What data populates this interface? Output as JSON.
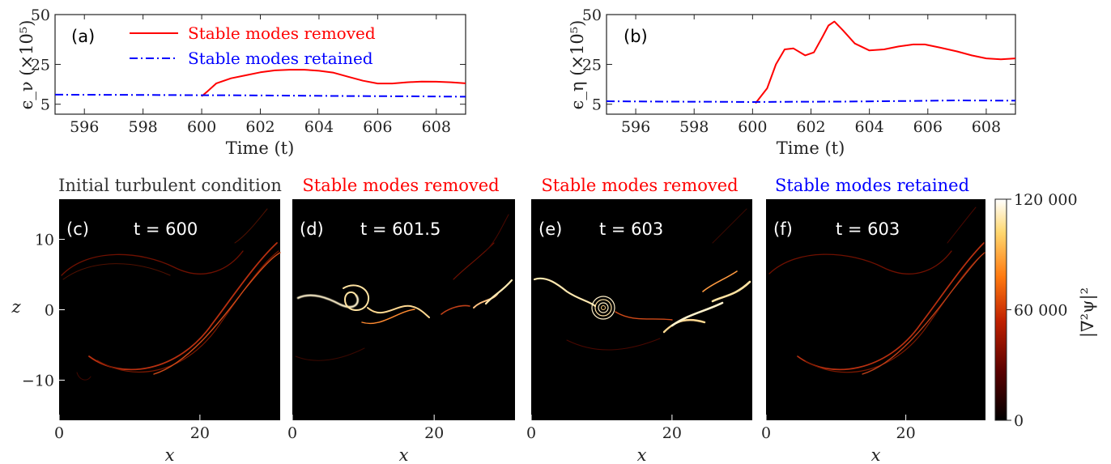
{
  "chart_data": [
    {
      "id": "a",
      "type": "line",
      "panel_label": "(a)",
      "ylabel": "ϵ_ν (×10⁵)",
      "xlabel": "Time (t)",
      "xlim": [
        595,
        609
      ],
      "ylim": [
        0,
        50
      ],
      "yticks": [
        5,
        25,
        50
      ],
      "xticks": [
        596,
        598,
        600,
        602,
        604,
        606,
        608
      ],
      "legend": "top-left",
      "series": [
        {
          "name": "Stable modes removed",
          "color": "#ff0000",
          "style": "solid",
          "x": [
            600,
            600.2,
            600.5,
            601,
            601.5,
            602,
            602.5,
            603,
            603.5,
            604,
            604.5,
            605,
            605.5,
            606,
            606.5,
            607,
            607.5,
            608,
            608.5,
            609
          ],
          "y": [
            9,
            11.5,
            15.5,
            18,
            19.5,
            21,
            22,
            22.3,
            22.3,
            21.8,
            20.8,
            18.8,
            16.8,
            15.4,
            15.4,
            16,
            16.4,
            16.3,
            16,
            15.5
          ]
        },
        {
          "name": "Stable modes retained",
          "color": "#0000ff",
          "style": "dashdot",
          "x": [
            595,
            597,
            599,
            600,
            601,
            603,
            605,
            607,
            609
          ],
          "y": [
            9.8,
            9.7,
            9.6,
            9.5,
            9.5,
            9.3,
            9.1,
            9,
            8.8
          ]
        }
      ]
    },
    {
      "id": "b",
      "type": "line",
      "panel_label": "(b)",
      "ylabel": "ϵ_η (×10⁵)",
      "xlabel": "Time (t)",
      "xlim": [
        595,
        609
      ],
      "ylim": [
        0,
        50
      ],
      "yticks": [
        5,
        25,
        50
      ],
      "xticks": [
        596,
        598,
        600,
        602,
        604,
        606,
        608
      ],
      "series": [
        {
          "name": "Stable modes removed",
          "color": "#ff0000",
          "style": "solid",
          "x": [
            600.1,
            600.5,
            600.8,
            601.1,
            601.4,
            601.8,
            602.1,
            602.4,
            602.6,
            602.8,
            603.1,
            603.5,
            604,
            604.5,
            605,
            605.5,
            605.9,
            606.4,
            607,
            607.5,
            608,
            608.5,
            609
          ],
          "y": [
            5.5,
            13,
            25,
            32.5,
            33,
            29.5,
            31,
            39,
            44.5,
            46.5,
            42,
            35.5,
            32,
            32.5,
            34,
            35,
            35,
            33.5,
            31.5,
            29.5,
            28,
            27.5,
            28
          ]
        },
        {
          "name": "Stable modes retained",
          "color": "#0000ff",
          "style": "dashdot",
          "x": [
            595,
            597,
            599,
            600,
            601,
            603,
            605,
            607,
            609
          ],
          "y": [
            6.5,
            6.3,
            6.2,
            6.1,
            6.2,
            6.3,
            6.6,
            6.9,
            6.8
          ]
        }
      ]
    },
    {
      "id": "c",
      "type": "heatmap",
      "panel_label": "(c)",
      "title": "Initial turbulent condition",
      "title_color": "#333333",
      "time_label": "t = 600",
      "xlabel": "x",
      "ylabel": "z",
      "xticks": [
        0,
        20
      ],
      "yticks": [
        10,
        0,
        -10
      ],
      "xlim": [
        0,
        31.4
      ],
      "ylim": [
        -15.7,
        15.7
      ]
    },
    {
      "id": "d",
      "type": "heatmap",
      "panel_label": "(d)",
      "title": "Stable modes removed",
      "title_color": "#ff0000",
      "time_label": "t = 601.5",
      "xlabel": "x",
      "xticks": [
        0,
        20
      ],
      "xlim": [
        0,
        31.4
      ],
      "ylim": [
        -15.7,
        15.7
      ]
    },
    {
      "id": "e",
      "type": "heatmap",
      "panel_label": "(e)",
      "title": "Stable modes removed",
      "title_color": "#ff0000",
      "time_label": "t = 603",
      "xlabel": "x",
      "xticks": [
        0,
        20
      ],
      "xlim": [
        0,
        31.4
      ],
      "ylim": [
        -15.7,
        15.7
      ]
    },
    {
      "id": "f",
      "type": "heatmap",
      "panel_label": "(f)",
      "title": "Stable modes retained",
      "title_color": "#0000ff",
      "time_label": "t = 603",
      "xlabel": "x",
      "xticks": [
        0,
        20
      ],
      "xlim": [
        0,
        31.4
      ],
      "ylim": [
        -15.7,
        15.7
      ]
    },
    {
      "id": "colorbar",
      "type": "colorbar",
      "label": "|∇²ψ|²",
      "range": [
        0,
        120000
      ],
      "ticks": [
        "120 000",
        "60 000",
        "0"
      ],
      "colors": [
        "#000000",
        "#5a0000",
        "#c02000",
        "#ff7a10",
        "#ffd870",
        "#ffffff"
      ]
    }
  ]
}
